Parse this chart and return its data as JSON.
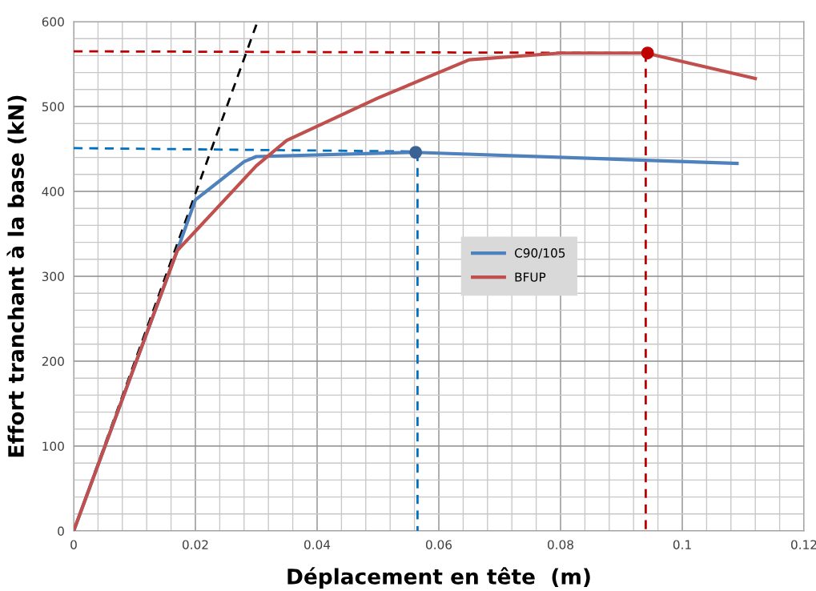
{
  "chart_data": {
    "type": "line",
    "xlabel": "Déplacement en tête  (m)",
    "ylabel": "Effort tranchant à la base (kN)",
    "xlim": [
      0,
      0.12
    ],
    "ylim": [
      0,
      600
    ],
    "xticks": [
      0,
      0.02,
      0.04,
      0.06,
      0.08,
      0.1,
      0.12
    ],
    "yticks": [
      0,
      100,
      200,
      300,
      400,
      500,
      600
    ],
    "grid": true,
    "legend": "center",
    "marker": "none",
    "line_style": "solid",
    "series": [
      {
        "name": "C90/105",
        "color": "#4f81bd",
        "x": [
          0,
          0.017,
          0.02,
          0.028,
          0.03,
          0.056,
          0.109
        ],
        "values": [
          0,
          330,
          390,
          435,
          441,
          446,
          433
        ]
      },
      {
        "name": "BFUP",
        "color": "#c0504d",
        "x": [
          0,
          0.017,
          0.03,
          0.035,
          0.05,
          0.065,
          0.08,
          0.094,
          0.112
        ],
        "values": [
          0,
          330,
          430,
          460,
          510,
          555,
          563,
          563,
          533
        ]
      },
      {
        "color": "#000000",
        "line_style": "dashed",
        "x": [
          0,
          0.0302
        ],
        "values": [
          0,
          600
        ]
      },
      {
        "color": "#0070c0",
        "line_style": "dashed",
        "x": [
          0,
          0.056
        ],
        "values": [
          451,
          447
        ]
      },
      {
        "color": "#0070c0",
        "line_style": "dashed",
        "x": [
          0.0565,
          0.0565
        ],
        "values": [
          446,
          0
        ]
      },
      {
        "color": "#c00000",
        "line_style": "dashed",
        "x": [
          0,
          0.094
        ],
        "values": [
          565,
          563
        ]
      },
      {
        "color": "#c00000",
        "line_style": "dashed",
        "x": [
          0.094,
          0.094
        ],
        "values": [
          563,
          0
        ]
      },
      {
        "type": "scatter",
        "marker": "circle",
        "color": "#3a6294",
        "x": [
          0.0562
        ],
        "values": [
          446
        ]
      },
      {
        "type": "scatter",
        "marker": "circle",
        "color": "#c00000",
        "x": [
          0.0943
        ],
        "values": [
          563
        ]
      }
    ]
  }
}
